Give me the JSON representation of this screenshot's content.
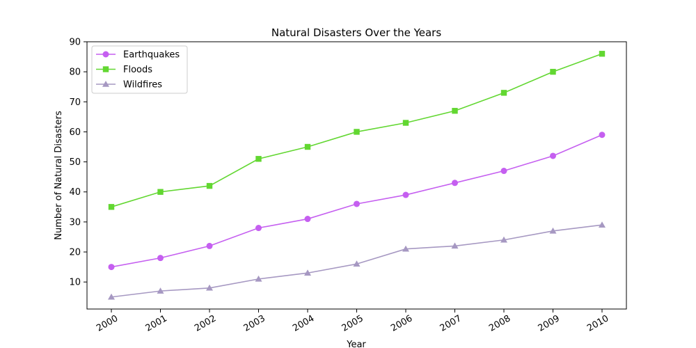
{
  "chart_data": {
    "type": "line",
    "title": "Natural Disasters Over the Years",
    "xlabel": "Year",
    "ylabel": "Number of Natural Disasters",
    "x": [
      "2000",
      "2001",
      "2002",
      "2003",
      "2004",
      "2005",
      "2006",
      "2007",
      "2008",
      "2009",
      "2010"
    ],
    "ylim": [
      1,
      90
    ],
    "yticks": [
      10,
      20,
      30,
      40,
      50,
      60,
      70,
      80,
      90
    ],
    "grid": false,
    "legend": "top-left",
    "series": [
      {
        "name": "Earthquakes",
        "color": "#c55ff0",
        "marker": "circle",
        "values": [
          15,
          18,
          22,
          28,
          31,
          36,
          39,
          43,
          47,
          52,
          59
        ]
      },
      {
        "name": "Floods",
        "color": "#62d731",
        "marker": "square",
        "values": [
          35,
          40,
          42,
          51,
          55,
          60,
          63,
          67,
          73,
          80,
          86
        ]
      },
      {
        "name": "Wildfires",
        "color": "#a698c2",
        "marker": "triangle",
        "values": [
          5,
          7,
          8,
          11,
          13,
          16,
          21,
          22,
          24,
          27,
          29
        ]
      }
    ]
  }
}
